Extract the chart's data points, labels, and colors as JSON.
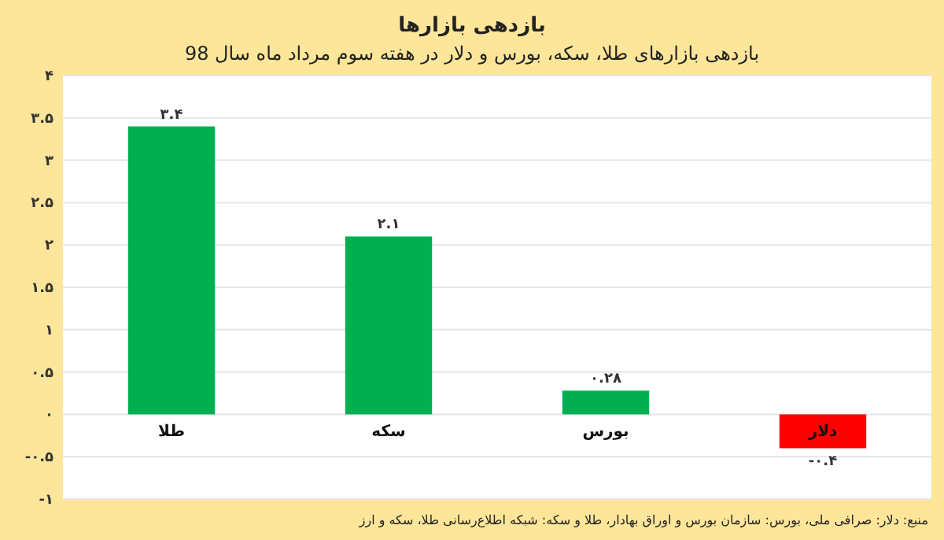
{
  "chart_data": {
    "type": "bar",
    "title": "بازدهی بازارها",
    "subtitle": "بازدهی بازارهای طلا، سکه، بورس و دلار در هفته سوم مرداد ماه سال 98",
    "categories": [
      "طلا",
      "سکه",
      "بورس",
      "دلار"
    ],
    "values": [
      3.4,
      2.1,
      0.28,
      -0.4
    ],
    "colors": [
      "#00b050",
      "#00b050",
      "#00b050",
      "#ff0000"
    ],
    "value_labels": [
      "۳.۴",
      "۲.۱",
      "۰.۲۸",
      "-۰.۴"
    ],
    "ylim": [
      -1,
      4
    ],
    "yticks": [
      {
        "value": -1,
        "label": "-۱"
      },
      {
        "value": -0.5,
        "label": "-۰.۵"
      },
      {
        "value": 0,
        "label": "۰"
      },
      {
        "value": 0.5,
        "label": "۰.۵"
      },
      {
        "value": 1,
        "label": "۱"
      },
      {
        "value": 1.5,
        "label": "۱.۵"
      },
      {
        "value": 2,
        "label": "۲"
      },
      {
        "value": 2.5,
        "label": "۲.۵"
      },
      {
        "value": 3,
        "label": "۳"
      },
      {
        "value": 3.5,
        "label": "۳.۵"
      },
      {
        "value": 4,
        "label": "۴"
      }
    ],
    "grid": "y",
    "annotations": [
      "منبع: دلار: صرافی ملی، بورس: سازمان بورس و اوراق بهادار، طلا و سکه: شبکه اطلاع‌رسانی طلا، سکه و ارز"
    ]
  }
}
